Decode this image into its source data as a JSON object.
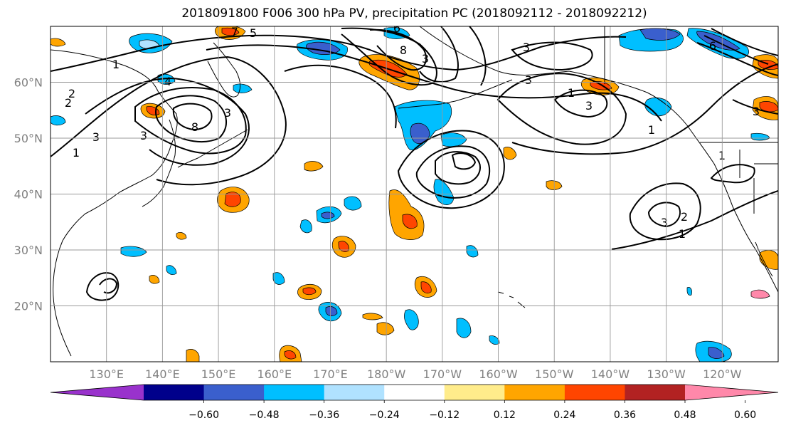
{
  "title": "2018091800 F006 300 hPa PV, precipitation PC (2018092112 - 2018092212)",
  "map": {
    "lat_labels": [
      "60°N",
      "50°N",
      "40°N",
      "30°N",
      "20°N"
    ],
    "lon_labels": [
      "130°E",
      "140°E",
      "150°E",
      "160°E",
      "170°E",
      "180°W",
      "170°W",
      "160°W",
      "150°W",
      "140°W",
      "130°W",
      "120°W"
    ],
    "lat_values": [
      60,
      50,
      40,
      30,
      20
    ],
    "lon_values": [
      130,
      140,
      150,
      160,
      170,
      180,
      190,
      200,
      210,
      220,
      230,
      240
    ],
    "extent": {
      "lon_min": 120,
      "lon_max": 250,
      "lat_min": 10,
      "lat_max": 70
    },
    "projection": "PlateCarree",
    "gridlines": true,
    "contour_labels": [
      "1",
      "2",
      "3",
      "3",
      "3",
      "4",
      "5",
      "6",
      "7",
      "8",
      "3",
      "1",
      "3",
      "1",
      "2",
      "3",
      "3",
      "1",
      "1",
      "2",
      "3",
      "6",
      "3",
      "8",
      "1"
    ]
  },
  "colorbar": {
    "ticks": [
      "−0.60",
      "−0.48",
      "−0.36",
      "−0.24",
      "−0.12",
      "0.12",
      "0.24",
      "0.36",
      "0.48",
      "0.60"
    ],
    "tick_values": [
      -0.6,
      -0.48,
      -0.36,
      -0.24,
      -0.12,
      0.12,
      0.24,
      0.36,
      0.48,
      0.6
    ],
    "colors": [
      "#9932cc",
      "#00008b",
      "#3a5fcd",
      "#00bfff",
      "#b0e2ff",
      "#ffffff",
      "#ffec8b",
      "#ffa500",
      "#ff4500",
      "#b22222",
      "#ff88aa"
    ],
    "extend": "both"
  }
}
